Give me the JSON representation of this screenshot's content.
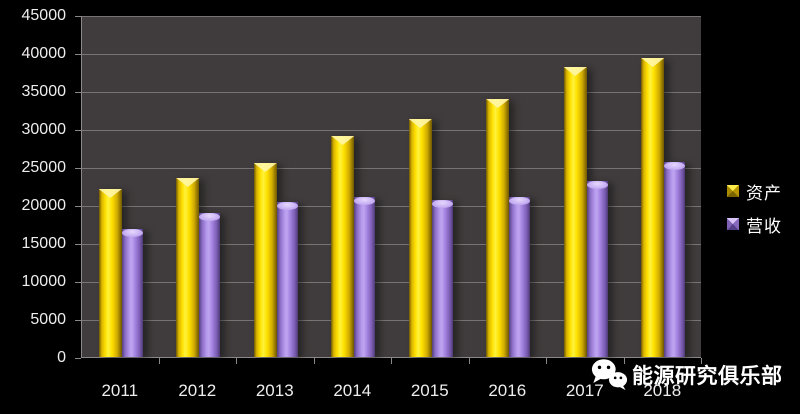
{
  "page": {
    "background": "#000000"
  },
  "chart_data": {
    "type": "bar",
    "title": "",
    "xlabel": "",
    "ylabel": "",
    "categories": [
      "2011",
      "2012",
      "2013",
      "2014",
      "2015",
      "2016",
      "2017",
      "2018"
    ],
    "series": [
      {
        "key": "assets",
        "name": "资产",
        "color": "#FFD700",
        "values": [
          22100,
          23600,
          25500,
          29100,
          31300,
          34000,
          38100,
          39300
        ]
      },
      {
        "key": "revenue",
        "name": "营收",
        "color": "#A98BE0",
        "values": [
          16800,
          18900,
          20400,
          21000,
          20700,
          21000,
          23200,
          25600
        ]
      }
    ],
    "ylim": [
      0,
      45000
    ],
    "ytick_step": 5000,
    "yticks": [
      45000,
      40000,
      35000,
      30000,
      25000,
      20000,
      15000,
      10000,
      5000,
      0
    ],
    "grid": true,
    "legend_position": "right",
    "plot_background": "#403C3D",
    "gridline_color": "#8B8788",
    "axis_text_color": "#EFEDED"
  },
  "legend": {
    "items": [
      {
        "key": "assets",
        "label": "资产",
        "swatch_color": "#E8C400"
      },
      {
        "key": "revenue",
        "label": "营收",
        "swatch_color": "#A98BE0"
      }
    ]
  },
  "watermark": {
    "icon": "wechat-icon",
    "text": "能源研究俱乐部",
    "color": "#FFFFFF"
  }
}
